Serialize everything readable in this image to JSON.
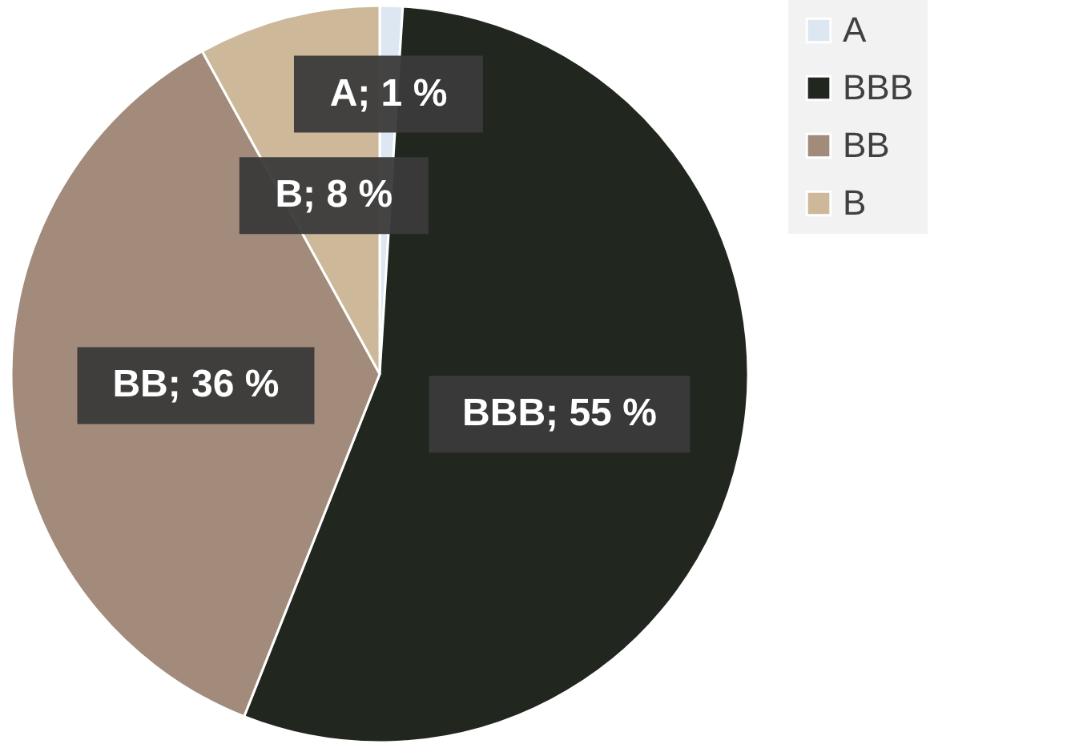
{
  "chart_data": {
    "type": "pie",
    "categories": [
      "A",
      "BBB",
      "BB",
      "B"
    ],
    "values": [
      1,
      55,
      36,
      8
    ],
    "colors": [
      "#dce7f2",
      "#21261f",
      "#a38b7c",
      "#cdb99a"
    ],
    "value_labels": [
      "A; 1 %",
      "BBB; 55 %",
      "BB; 36 %",
      "B; 8 %"
    ],
    "legend": "right"
  }
}
